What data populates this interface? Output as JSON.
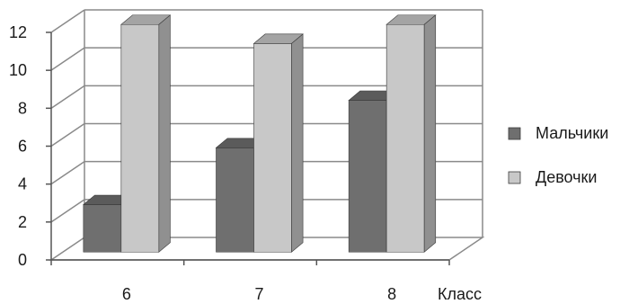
{
  "chart_data": {
    "type": "bar",
    "categories": [
      "6",
      "7",
      "8"
    ],
    "series": [
      {
        "name": "Мальчики",
        "values": [
          2.5,
          5.5,
          8
        ],
        "color": "#6f6f6f"
      },
      {
        "name": "Девочки",
        "values": [
          12,
          11,
          12
        ],
        "color": "#c8c8c8"
      }
    ],
    "title": "",
    "xlabel": "Класс",
    "ylabel": "",
    "ylim": [
      0,
      12
    ],
    "yticks": [
      0,
      2,
      4,
      6,
      8,
      10,
      12
    ],
    "grid": true,
    "three_d": true,
    "legend_position": "right"
  }
}
